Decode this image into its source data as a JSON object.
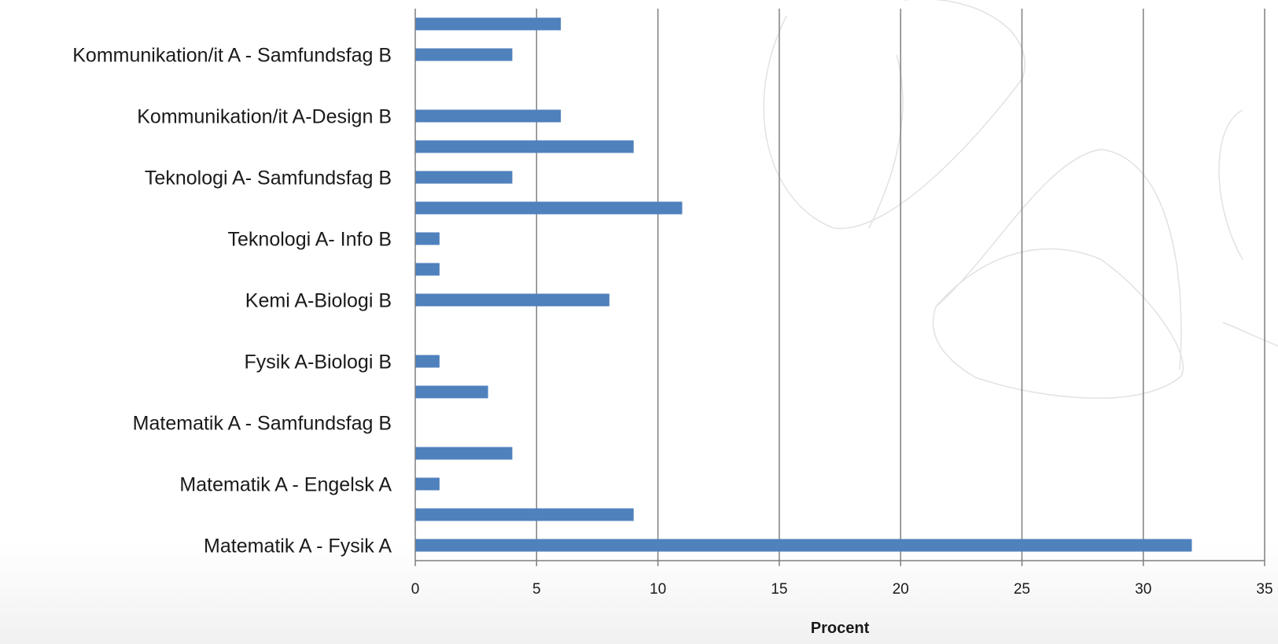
{
  "chart_data": {
    "type": "bar",
    "orientation": "horizontal",
    "categories": [
      "Matematik A - Fysik A",
      "",
      "Matematik A - Engelsk A",
      "",
      "Matematik A - Samfundsfag B",
      "",
      "Fysik A-Biologi B",
      "",
      "Kemi A-Biologi B",
      "",
      "Teknologi A- Info B",
      "",
      "Teknologi A- Samfundsfag B",
      "",
      "Kommunikation/it A-Design B",
      "",
      "Kommunikation/it A - Samfundsfag B",
      ""
    ],
    "values": [
      32,
      9,
      1,
      4,
      0,
      3,
      1,
      0,
      8,
      1,
      1,
      11,
      4,
      9,
      6,
      0,
      4,
      6
    ],
    "xlabel": "Procent",
    "ylabel": "",
    "xlim": [
      0,
      35
    ],
    "xticks": [
      0,
      5,
      10,
      15,
      20,
      25,
      30,
      35
    ],
    "grid": "vertical",
    "colors": {
      "bar": "#4f81bd",
      "grid": "#7f7f7f",
      "decoration": "#e2e2e2"
    }
  }
}
